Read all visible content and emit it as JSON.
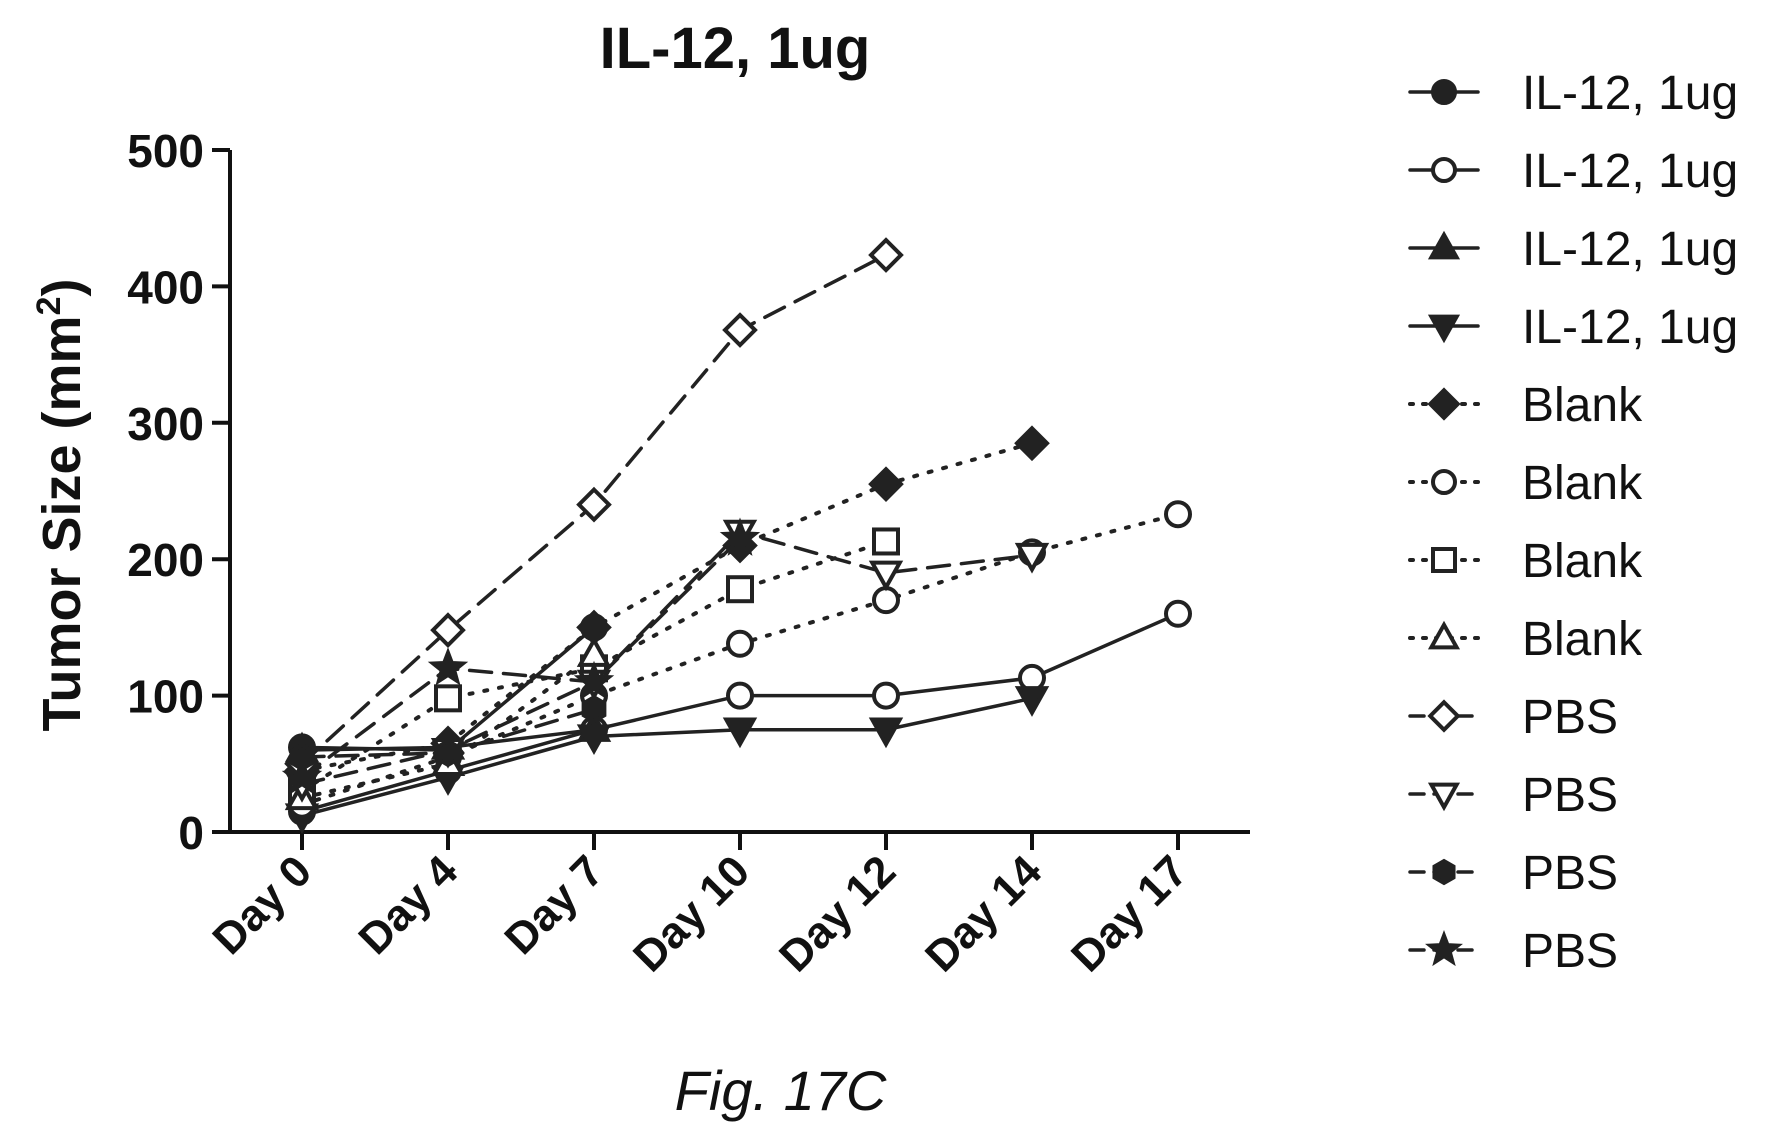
{
  "chart_data": {
    "type": "line",
    "title": "IL-12, 1ug",
    "ylabel": "Tumor Size (mm",
    "ylabel_sup": "2",
    "ylabel_close": ")",
    "xlabel": "",
    "ylim": [
      0,
      500
    ],
    "yticks": [
      "0",
      "100",
      "200",
      "300",
      "400",
      "500"
    ],
    "categories": [
      "Day 0",
      "Day 4",
      "Day 7",
      "Day 10",
      "Day 12",
      "Day 14",
      "Day 17"
    ],
    "legend_position": "right",
    "grid": false,
    "series": [
      {
        "name": "IL-12, 1ug",
        "marker": "circle-filled",
        "line": "solid",
        "values": [
          62,
          60,
          150,
          null,
          null,
          null,
          null
        ]
      },
      {
        "name": "IL-12, 1ug",
        "marker": "circle-open",
        "line": "solid",
        "values": [
          15,
          45,
          75,
          100,
          100,
          113,
          160
        ]
      },
      {
        "name": "IL-12, 1ug",
        "marker": "triangle-up-filled",
        "line": "solid",
        "values": [
          60,
          62,
          75,
          null,
          null,
          null,
          null
        ]
      },
      {
        "name": "IL-12, 1ug",
        "marker": "triangle-down-filled",
        "line": "solid",
        "values": [
          12,
          40,
          70,
          75,
          75,
          98,
          null
        ]
      },
      {
        "name": "Blank",
        "marker": "diamond-filled",
        "line": "dotted",
        "values": [
          45,
          65,
          150,
          210,
          255,
          285,
          null
        ]
      },
      {
        "name": "Blank",
        "marker": "circle-open",
        "line": "dotted",
        "values": [
          20,
          55,
          100,
          138,
          170,
          205,
          233
        ]
      },
      {
        "name": "Blank",
        "marker": "square-open",
        "line": "dotted",
        "values": [
          30,
          98,
          120,
          178,
          213,
          null,
          null
        ]
      },
      {
        "name": "Blank",
        "marker": "triangle-up-open",
        "line": "dotted",
        "values": [
          25,
          50,
          130,
          null,
          null,
          null,
          null
        ]
      },
      {
        "name": "PBS",
        "marker": "diamond-open",
        "line": "dashed",
        "values": [
          50,
          148,
          240,
          368,
          423,
          null,
          null
        ]
      },
      {
        "name": "PBS",
        "marker": "triangle-down-open",
        "line": "dashed",
        "values": [
          35,
          60,
          110,
          220,
          190,
          203,
          null
        ]
      },
      {
        "name": "PBS",
        "marker": "hexagon-filled",
        "line": "dashed",
        "values": [
          55,
          58,
          90,
          null,
          null,
          null,
          null
        ]
      },
      {
        "name": "PBS",
        "marker": "star-filled",
        "line": "dashed",
        "values": [
          40,
          120,
          110,
          215,
          null,
          null,
          null
        ]
      }
    ]
  },
  "caption": "Fig. 17C"
}
